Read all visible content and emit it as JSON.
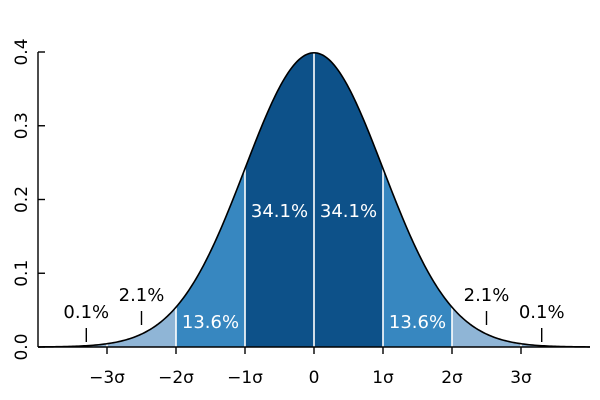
{
  "chart_data": {
    "type": "area",
    "title": "",
    "xlabel": "",
    "ylabel": "",
    "xlim": [
      -4,
      4
    ],
    "ylim": [
      0,
      0.4
    ],
    "y_ticks": [
      "0.0",
      "0.1",
      "0.2",
      "0.3",
      "0.4"
    ],
    "x_ticks": [
      {
        "value": -3,
        "label": "−3σ"
      },
      {
        "value": -2,
        "label": "−2σ"
      },
      {
        "value": -1,
        "label": "−1σ"
      },
      {
        "value": 0,
        "label": "0"
      },
      {
        "value": 1,
        "label": "1σ"
      },
      {
        "value": 2,
        "label": "2σ"
      },
      {
        "value": 3,
        "label": "3σ"
      }
    ],
    "grid": false,
    "curve": {
      "mean": 0,
      "sd": 1
    },
    "bands": [
      {
        "from": -4,
        "to": -3,
        "percent": "0.1%",
        "color": "#8fb5d6"
      },
      {
        "from": -3,
        "to": -2,
        "percent": "2.1%",
        "color": "#8fb5d6"
      },
      {
        "from": -2,
        "to": -1,
        "percent": "13.6%",
        "color": "#3787c0"
      },
      {
        "from": -1,
        "to": 0,
        "percent": "34.1%",
        "color": "#0d5189"
      },
      {
        "from": 0,
        "to": 1,
        "percent": "34.1%",
        "color": "#0d5189"
      },
      {
        "from": 1,
        "to": 2,
        "percent": "13.6%",
        "color": "#3787c0"
      },
      {
        "from": 2,
        "to": 3,
        "percent": "2.1%",
        "color": "#8fb5d6"
      },
      {
        "from": 3,
        "to": 4,
        "percent": "0.1%",
        "color": "#8fb5d6"
      }
    ],
    "outer_labels": [
      {
        "text": "0.1%",
        "at": -3.3
      },
      {
        "text": "2.1%",
        "at": -2.5
      },
      {
        "text": "2.1%",
        "at": 2.5
      },
      {
        "text": "0.1%",
        "at": 3.3
      }
    ],
    "inner_labels": [
      {
        "text": "13.6%",
        "at": -1.5
      },
      {
        "text": "34.1%",
        "at": -0.5
      },
      {
        "text": "34.1%",
        "at": 0.5
      },
      {
        "text": "13.6%",
        "at": 1.5
      }
    ]
  }
}
